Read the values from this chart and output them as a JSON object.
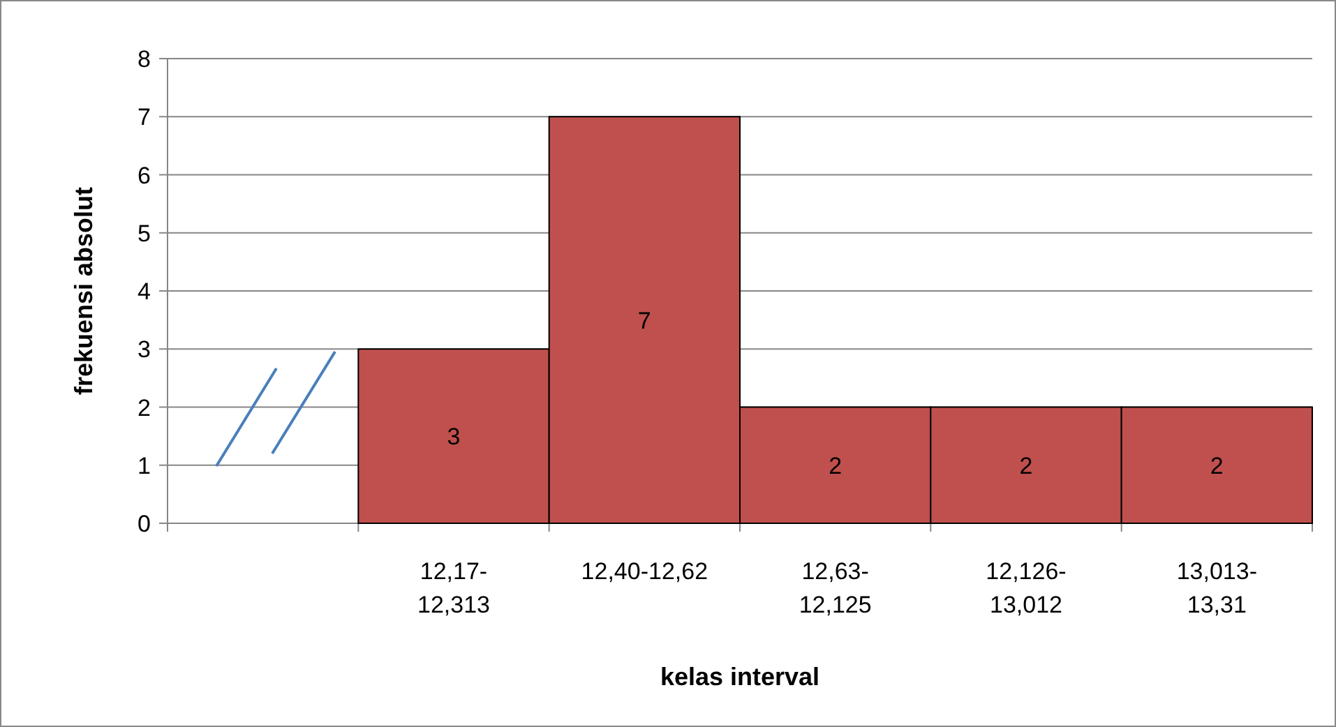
{
  "chart_data": {
    "type": "bar",
    "xlabel": "kelas interval",
    "ylabel": "frekuensi absolut",
    "categories": [
      null,
      "12,17-12,313",
      "12,40-12,62",
      "12,63-12,125",
      "12,126-13,012",
      "13,013-13,31"
    ],
    "values": [
      null,
      3,
      7,
      2,
      2,
      2
    ],
    "color": "#c0504d",
    "ylim": [
      0,
      8
    ],
    "yticks": [
      0,
      1,
      2,
      3,
      4,
      5,
      6,
      7,
      8
    ],
    "grid": "y",
    "data_labels": true
  }
}
